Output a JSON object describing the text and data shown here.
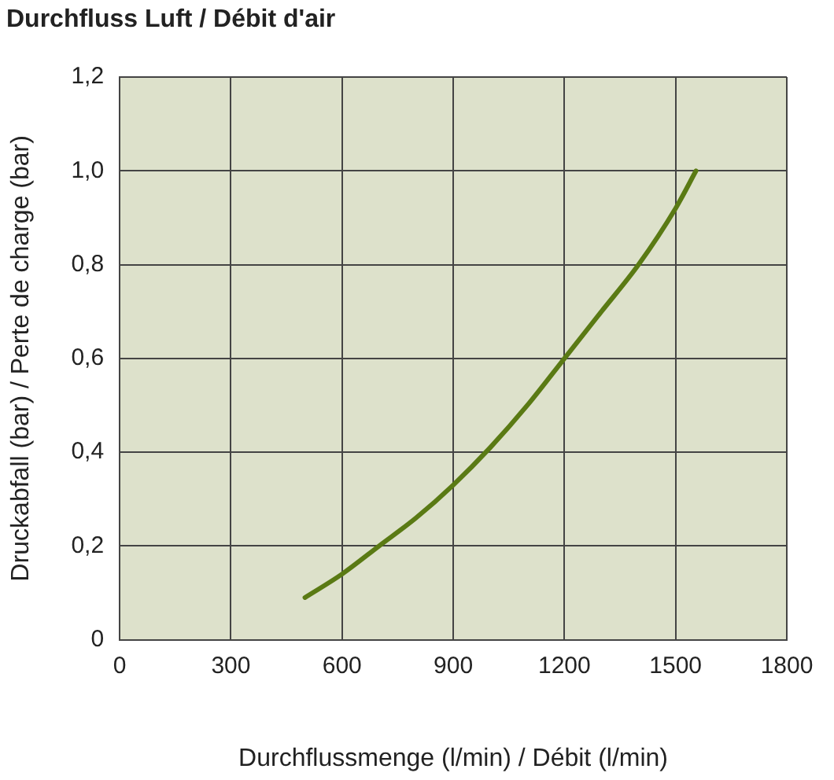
{
  "chart_data": {
    "type": "line",
    "title": "Durchfluss Luft / Débit d'air",
    "xlabel": "Durchflussmenge (l/min) / Débit (l/min)",
    "ylabel": "Druckabfall (bar) / Perte de charge (bar)",
    "x": [
      500,
      600,
      700,
      800,
      900,
      1000,
      1100,
      1200,
      1300,
      1400,
      1500,
      1555
    ],
    "series": [
      {
        "color": "#5a7a14",
        "values": [
          0.09,
          0.14,
          0.2,
          0.26,
          0.33,
          0.41,
          0.5,
          0.6,
          0.7,
          0.8,
          0.92,
          1.0
        ]
      }
    ],
    "xlim": [
      0,
      1800
    ],
    "xticks": [
      0,
      300,
      600,
      900,
      1200,
      1500,
      1800
    ],
    "ylim": [
      0,
      1.2
    ],
    "yticks": [
      0,
      {
        "value": 0.2,
        "label": "0,2"
      },
      {
        "value": 0.4,
        "label": "0,4"
      },
      {
        "value": 0.6,
        "label": "0,6"
      },
      {
        "value": 0.8,
        "label": "0,8"
      },
      {
        "value": 1.0,
        "label": "1,0"
      },
      {
        "value": 1.2,
        "label": "1,2"
      }
    ],
    "grid": true,
    "legend": false,
    "marker": "none",
    "line_style": "solid"
  }
}
